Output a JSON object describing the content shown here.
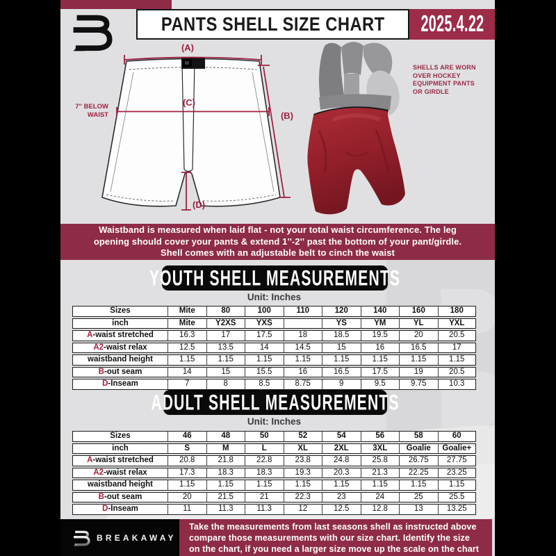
{
  "colors": {
    "maroon": "#8e2b46",
    "date_box_maroon": "#9d2c49",
    "annotation_red": "#9e203e",
    "table_prefix_red": "#a51e35",
    "page_background": "#e0e0e2",
    "heading_black": "#0a0a0a",
    "shell_red": "#a32733"
  },
  "header": {
    "title": "PANTS SHELL SIZE CHART",
    "date": "2025.4.22"
  },
  "diagram": {
    "label_a": "(A)",
    "label_b": "(B)",
    "label_c": "(C)",
    "label_d": "(D)",
    "below_waist_line1": "7'' BELOW",
    "below_waist_line2": "WAIST",
    "photo_note_lines": [
      "SHELLS ARE WORN",
      "OVER HOCKEY",
      "EQUIPMENT PANTS",
      "OR GIRDLE"
    ]
  },
  "banner": {
    "lines": [
      "Waistband is measured when laid flat - not your total waist circumference. The leg",
      "opening should cover your pants & extend 1''-2'' past the bottom of your pant/girdle.",
      "Shell comes with an adjustable belt to cinch the waist"
    ]
  },
  "youth": {
    "heading": "YOUTH SHELL MEASUREMENTS",
    "unit": "Unit: Inches",
    "table": {
      "rows": [
        {
          "bold": true,
          "pre": "",
          "label": "Sizes",
          "values": [
            "Mite",
            "80",
            "100",
            "110",
            "120",
            "140",
            "160",
            "180"
          ]
        },
        {
          "bold": true,
          "pre": "",
          "label": "inch",
          "values": [
            "Mite",
            "Y2XS",
            "YXS",
            "",
            "YS",
            "YM",
            "YL",
            "YXL"
          ]
        },
        {
          "bold": false,
          "pre": "A",
          "label": "-waist stretched",
          "values": [
            "16.3",
            "17",
            "17.5",
            "18",
            "18.5",
            "19.5",
            "20",
            "20.5"
          ]
        },
        {
          "bold": false,
          "pre": "A2",
          "label": "-waist relax",
          "values": [
            "12.5",
            "13.5",
            "14",
            "14.5",
            "15",
            "16",
            "16.5",
            "17"
          ]
        },
        {
          "bold": false,
          "pre": "",
          "label": "waistband height",
          "values": [
            "1.15",
            "1.15",
            "1.15",
            "1.15",
            "1.15",
            "1.15",
            "1.15",
            "1.15"
          ]
        },
        {
          "bold": false,
          "pre": "B",
          "label": "-out seam",
          "values": [
            "14",
            "15",
            "15.5",
            "16",
            "16.5",
            "17.5",
            "19",
            "20.5"
          ]
        },
        {
          "bold": false,
          "pre": "D",
          "label": "-Inseam",
          "values": [
            "7",
            "8",
            "8.5",
            "8.75",
            "9",
            "9.5",
            "9.75",
            "10.3"
          ]
        }
      ]
    }
  },
  "adult": {
    "heading": "ADULT SHELL MEASUREMENTS",
    "unit": "Unit: Inches",
    "table": {
      "rows": [
        {
          "bold": true,
          "pre": "",
          "label": "Sizes",
          "values": [
            "46",
            "48",
            "50",
            "52",
            "54",
            "56",
            "58",
            "60"
          ]
        },
        {
          "bold": true,
          "pre": "",
          "label": "inch",
          "values": [
            "S",
            "M",
            "L",
            "XL",
            "2XL",
            "3XL",
            "Goalie",
            "Goalie+"
          ]
        },
        {
          "bold": false,
          "pre": "A",
          "label": "-waist stretched",
          "values": [
            "20.8",
            "21.8",
            "22.8",
            "23.8",
            "24.8",
            "25.8",
            "26.75",
            "27.75"
          ]
        },
        {
          "bold": false,
          "pre": "A2",
          "label": "-waist relax",
          "values": [
            "17.3",
            "18.3",
            "18.3",
            "19.3",
            "20.3",
            "21.3",
            "22.25",
            "23.25"
          ]
        },
        {
          "bold": false,
          "pre": "",
          "label": "waistband height",
          "values": [
            "1.15",
            "1.15",
            "1.15",
            "1.15",
            "1.15",
            "1.15",
            "1.15",
            "1.15"
          ]
        },
        {
          "bold": false,
          "pre": "B",
          "label": "-out seam",
          "values": [
            "20",
            "21.5",
            "21",
            "22.3",
            "23",
            "24",
            "25",
            "25.5"
          ]
        },
        {
          "bold": false,
          "pre": "D",
          "label": "-Inseam",
          "values": [
            "11",
            "11.3",
            "11.3",
            "12",
            "12.5",
            "12.8",
            "13",
            "13.25"
          ]
        }
      ]
    }
  },
  "footer": {
    "brand": "BREAKAWAY",
    "lines": [
      "Take the measurements from last seasons shell as instructed above",
      "compare those measurements  with our size chart. Identify the size",
      "on the chart, if you need a larger size move up the scale on the chart"
    ]
  },
  "watermark_letter": "B"
}
